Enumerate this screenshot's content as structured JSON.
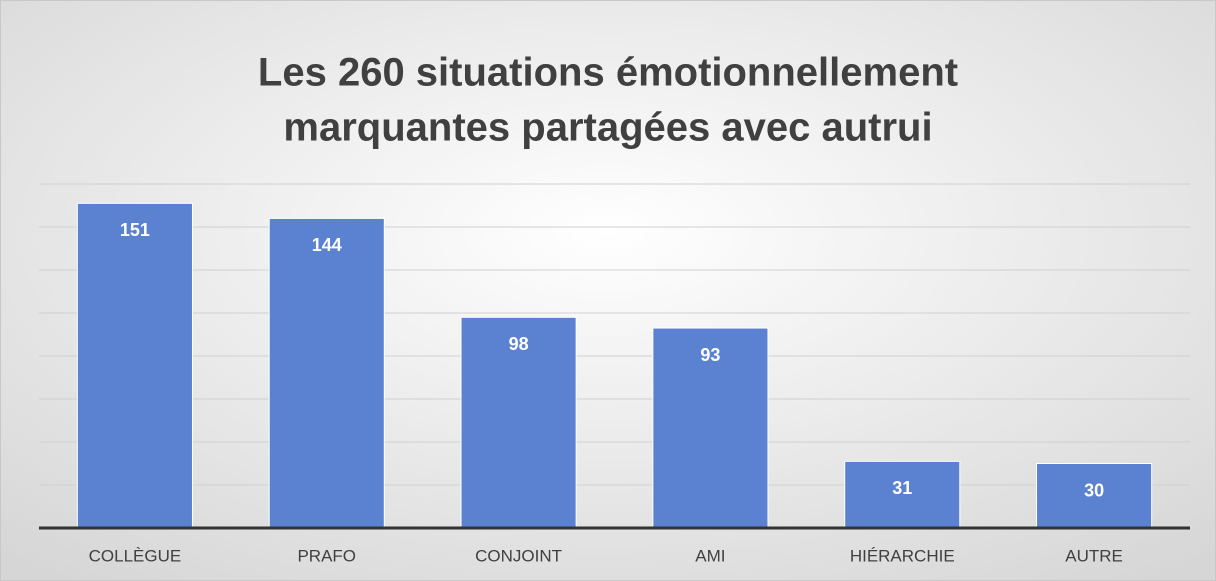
{
  "chart_data": {
    "type": "bar",
    "title": [
      "Les 260 situations émotionnellement",
      "marquantes partagées avec autrui"
    ],
    "categories": [
      "COLLÈGUE",
      "PRAFO",
      "CONJOINT",
      "AMI",
      "HIÉRARCHIE",
      "AUTRE"
    ],
    "values": [
      151,
      144,
      98,
      93,
      31,
      30
    ],
    "color": "#5b82d0",
    "ylim": [
      0,
      160
    ],
    "yticks": [
      0,
      20,
      40,
      60,
      80,
      100,
      120,
      140,
      160
    ],
    "grid": true
  }
}
